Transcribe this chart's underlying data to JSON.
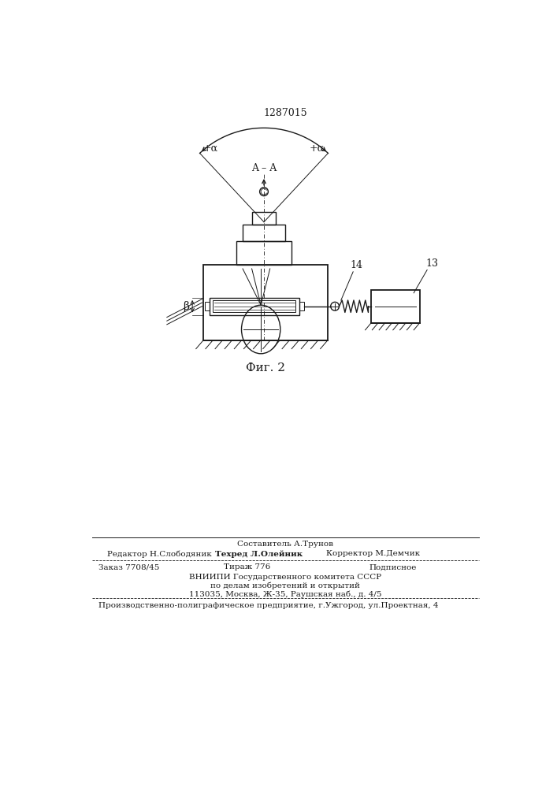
{
  "patent_number": "1287015",
  "fig_label": "Фиг. 2",
  "label_AA": "A – A",
  "label_plus_alpha_left": "+α",
  "label_minus_alpha_right": "+α",
  "label_beta": "β",
  "label_14": "14",
  "label_13": "13",
  "line_color": "#1a1a1a",
  "bg_color": "#ffffff",
  "footer_line1_center": "Составитель А.Трунов",
  "footer_line2_left": "Редактор Н.Слободяник",
  "footer_line2_center": "Техред Л.Олейник",
  "footer_line2_right": "Корректор М.Демчик",
  "footer_line3_left": "Заказ 7708/45",
  "footer_line3_center": "Тираж 776",
  "footer_line3_right": "Подписное",
  "footer_line4": "ВНИИПИ Государственного комитета СССР",
  "footer_line5": "по делам изобретений и открытий",
  "footer_line6": "113035, Москва, Ж-35, Раушская наб., д. 4/5",
  "footer_last": "Производственно-полиграфическое предприятие, г.Ужгород, ул.Проектная, 4"
}
